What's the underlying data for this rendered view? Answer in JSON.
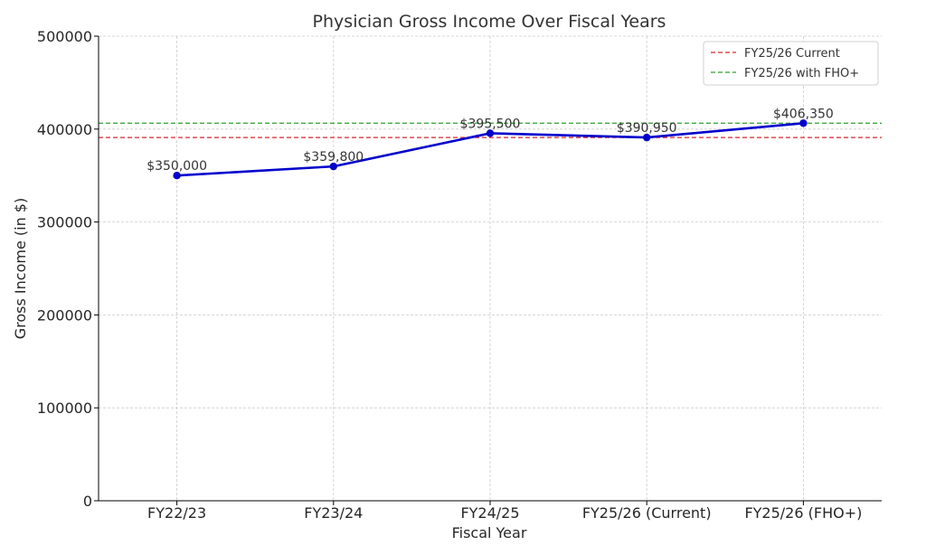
{
  "chart_data": {
    "type": "line",
    "title": "Physician Gross Income Over Fiscal Years",
    "xlabel": "Fiscal Year",
    "ylabel": "Gross Income (in $)",
    "categories": [
      "FY22/23",
      "FY23/24",
      "FY24/25",
      "FY25/26 (Current)",
      "FY25/26 (FHO+)"
    ],
    "series": [
      {
        "values": [
          350000,
          359800,
          395500,
          390950,
          406350
        ],
        "data_labels": [
          "$350,000",
          "$359,800",
          "$395,500",
          "$390,950",
          "$406,350"
        ],
        "color": "#0000cc"
      }
    ],
    "reference_lines": [
      {
        "name": "FY25/26 Current",
        "value": 390950,
        "color": "#d62728",
        "style": "dashed"
      },
      {
        "name": "FY25/26 with FHO+",
        "value": 406350,
        "color": "#2ca02c",
        "style": "dashed"
      }
    ],
    "ylim": [
      0,
      500000
    ],
    "yticks": [
      "0",
      "100000",
      "200000",
      "300000",
      "400000",
      "500000"
    ],
    "grid": true,
    "legend_position": "top-right"
  }
}
